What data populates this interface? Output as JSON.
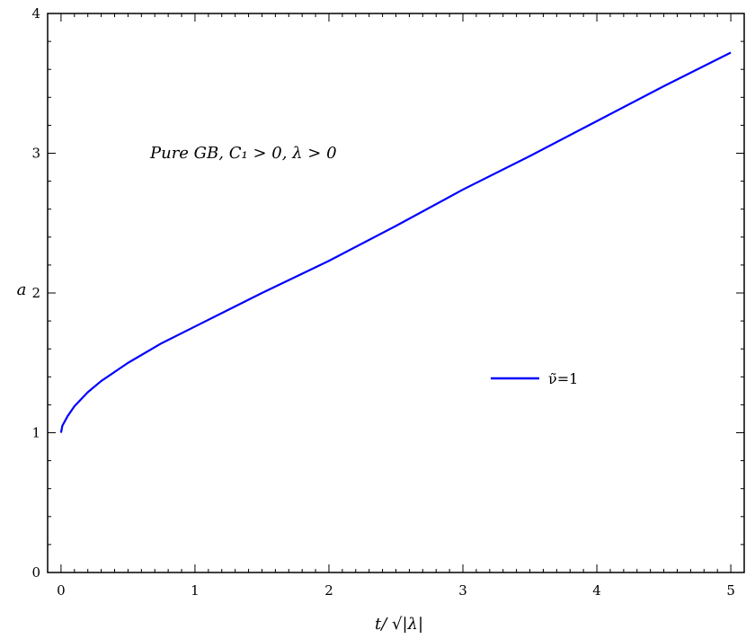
{
  "chart_data": {
    "type": "line",
    "xlabel": "t/ √|λ|",
    "ylabel": "a",
    "annotation": "Pure GB,    C₁ > 0,    λ > 0",
    "xlim": [
      -0.1,
      5.1
    ],
    "ylim": [
      0,
      4
    ],
    "x_ticks": [
      0,
      1,
      2,
      3,
      4,
      5
    ],
    "y_ticks": [
      0,
      1,
      2,
      3,
      4
    ],
    "x_tick_labels": [
      "0",
      "1",
      "2",
      "3",
      "4",
      "5"
    ],
    "y_tick_labels": [
      "0",
      "1",
      "2",
      "3",
      "4"
    ],
    "grid": false,
    "legend_position": "right-middle",
    "series": [
      {
        "name": "ν̃=1",
        "color": "#0000ff",
        "x": [
          0,
          0.01,
          0.05,
          0.1,
          0.2,
          0.3,
          0.5,
          0.75,
          1.0,
          1.5,
          2.0,
          2.5,
          3.0,
          3.5,
          4.0,
          4.5,
          5.0
        ],
        "y": [
          1.0,
          1.05,
          1.12,
          1.19,
          1.29,
          1.37,
          1.5,
          1.64,
          1.76,
          2.0,
          2.23,
          2.48,
          2.74,
          2.98,
          3.23,
          3.48,
          3.72
        ]
      }
    ]
  }
}
